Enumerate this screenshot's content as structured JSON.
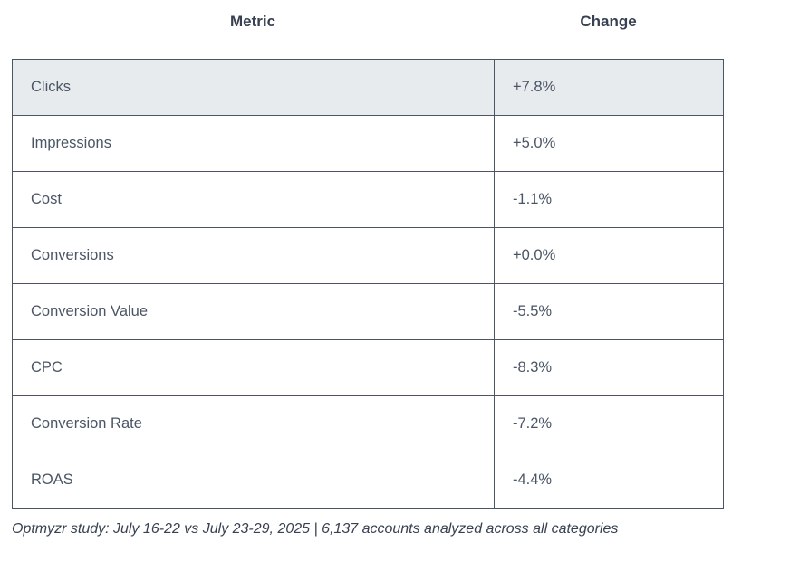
{
  "header": {
    "metric_label": "Metric",
    "change_label": "Change"
  },
  "table": {
    "rows": [
      {
        "metric": "Clicks",
        "change": "+7.8%"
      },
      {
        "metric": "Impressions",
        "change": "+5.0%"
      },
      {
        "metric": "Cost",
        "change": "-1.1%"
      },
      {
        "metric": "Conversions",
        "change": "+0.0%"
      },
      {
        "metric": "Conversion Value",
        "change": "-5.5%"
      },
      {
        "metric": "CPC",
        "change": "-8.3%"
      },
      {
        "metric": "Conversion Rate",
        "change": "-7.2%"
      },
      {
        "metric": "ROAS",
        "change": "-4.4%"
      }
    ]
  },
  "caption": {
    "text": "Optmyzr study: July 16-22 vs July 23-29, 2025 | 6,137 accounts analyzed across all categories"
  },
  "colors": {
    "border": "#4b5563",
    "shaded_row_bg": "#e8ebee",
    "header_text": "#374151",
    "cell_text": "#4a5565"
  },
  "chart_data": {
    "type": "table",
    "columns": [
      "Metric",
      "Change"
    ],
    "categories": [
      "Clicks",
      "Impressions",
      "Cost",
      "Conversions",
      "Conversion Value",
      "CPC",
      "Conversion Rate",
      "ROAS"
    ],
    "values_pct_change": [
      7.8,
      5.0,
      -1.1,
      0.0,
      -5.5,
      -8.3,
      -7.2,
      -4.4
    ],
    "rows": [
      [
        "Clicks",
        "+7.8%"
      ],
      [
        "Impressions",
        "+5.0%"
      ],
      [
        "Cost",
        "-1.1%"
      ],
      [
        "Conversions",
        "+0.0%"
      ],
      [
        "Conversion Value",
        "-5.5%"
      ],
      [
        "CPC",
        "-8.3%"
      ],
      [
        "Conversion Rate",
        "-7.2%"
      ],
      [
        "ROAS",
        "-4.4%"
      ]
    ],
    "title": "",
    "caption": "Optmyzr study: July 16-22 vs July 23-29, 2025 | 6,137 accounts analyzed across all categories",
    "layout_hints": {
      "first_row_shaded": true,
      "headers_outside_table": true,
      "headers_centered": true
    }
  }
}
